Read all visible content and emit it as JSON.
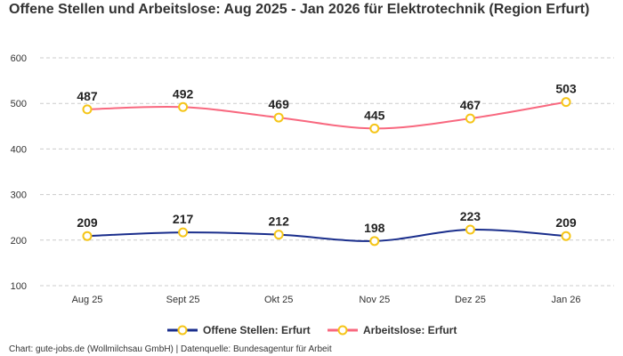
{
  "chart_data": {
    "type": "line",
    "title": "Offene Stellen und Arbeitslose: Aug 2025 - Jan 2026 für Elektrotechnik (Region Erfurt)",
    "categories": [
      "Aug 25",
      "Sept 25",
      "Okt 25",
      "Nov 25",
      "Dez 25",
      "Jan 26"
    ],
    "series": [
      {
        "name": "Offene Stellen: Erfurt",
        "values": [
          209,
          217,
          212,
          198,
          223,
          209
        ],
        "color": "#1a2e8c"
      },
      {
        "name": "Arbeitslose: Erfurt",
        "values": [
          487,
          492,
          469,
          445,
          467,
          503
        ],
        "color": "#f8687f"
      }
    ],
    "marker_color": "#f5c518",
    "yticks": [
      100,
      200,
      300,
      400,
      500,
      600
    ],
    "ylim": [
      100,
      600
    ],
    "grid": true,
    "legend": "bottom-center",
    "xlabel": "",
    "ylabel": ""
  },
  "footer": "Chart: gute-jobs.de (Wollmilchsau GmbH) | Datenquelle: Bundesagentur für Arbeit"
}
